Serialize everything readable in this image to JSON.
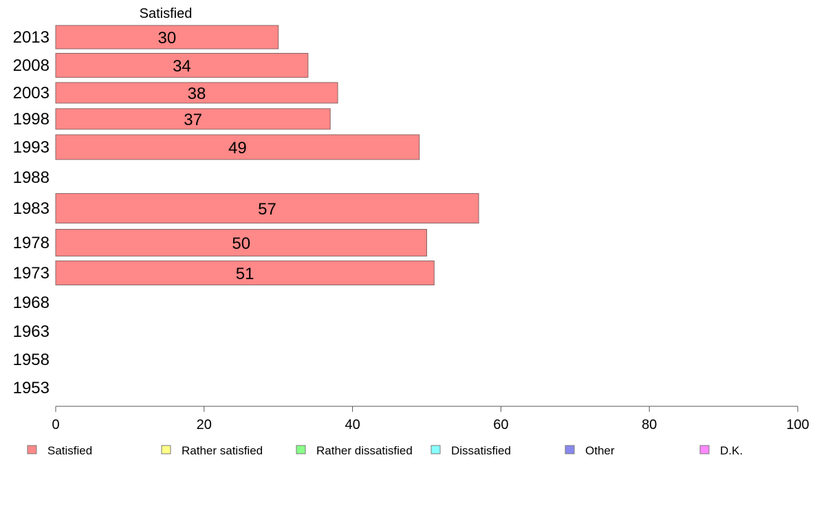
{
  "chart_data": {
    "type": "bar",
    "orientation": "horizontal",
    "categories": [
      "2013",
      "2008",
      "2003",
      "1998",
      "1993",
      "1988",
      "1983",
      "1978",
      "1973",
      "1968",
      "1963",
      "1958",
      "1953"
    ],
    "series": [
      {
        "name": "Satisfied",
        "color": "#ff8888",
        "values": [
          30,
          34,
          38,
          37,
          49,
          null,
          57,
          50,
          51,
          null,
          null,
          null,
          null
        ]
      },
      {
        "name": "Rather satisfied",
        "color": "#ffff88",
        "values": [
          null,
          null,
          null,
          null,
          null,
          null,
          null,
          null,
          null,
          null,
          null,
          null,
          null
        ]
      },
      {
        "name": "Rather dissatisfied",
        "color": "#88ff88",
        "values": [
          null,
          null,
          null,
          null,
          null,
          null,
          null,
          null,
          null,
          null,
          null,
          null,
          null
        ]
      },
      {
        "name": "Dissatisfied",
        "color": "#88ffff",
        "values": [
          null,
          null,
          null,
          null,
          null,
          null,
          null,
          null,
          null,
          null,
          null,
          null,
          null
        ]
      },
      {
        "name": "Other",
        "color": "#8888ee",
        "values": [
          null,
          null,
          null,
          null,
          null,
          null,
          null,
          null,
          null,
          null,
          null,
          null,
          null
        ]
      },
      {
        "name": "D.K.",
        "color": "#ff88ff",
        "values": [
          null,
          null,
          null,
          null,
          null,
          null,
          null,
          null,
          null,
          null,
          null,
          null,
          null
        ]
      }
    ],
    "column_header": "Satisfied",
    "x_ticks": [
      0,
      20,
      40,
      60,
      80,
      100
    ],
    "xlim": [
      0,
      100
    ],
    "grid": false,
    "legend_position": "bottom"
  }
}
